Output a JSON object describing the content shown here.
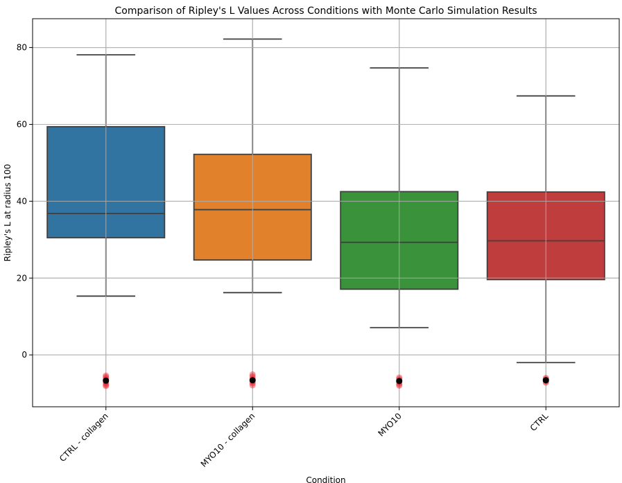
{
  "chart_data": {
    "type": "box",
    "title": "Comparison of Ripley's L Values Across Conditions with Monte Carlo Simulation Results",
    "xlabel": "Condition",
    "ylabel": "Ripley's L at radius 100",
    "ylim": [
      -13.5,
      87.5
    ],
    "yticks": [
      0,
      20,
      40,
      60,
      80
    ],
    "grid": true,
    "categories": [
      "CTRL - collagen",
      "MYO10 - collagen",
      "MYO10",
      "CTRL"
    ],
    "colors": [
      "#3274a1",
      "#e1812c",
      "#3a923a",
      "#c03d3e"
    ],
    "boxes": [
      {
        "whisker_low": 15.3,
        "q1": 30.5,
        "median": 36.8,
        "q3": 59.4,
        "whisker_high": 78.1
      },
      {
        "whisker_low": 16.2,
        "q1": 24.7,
        "median": 37.8,
        "q3": 52.2,
        "whisker_high": 82.2
      },
      {
        "whisker_low": 7.1,
        "q1": 17.1,
        "median": 29.3,
        "q3": 42.5,
        "whisker_high": 74.7
      },
      {
        "whisker_low": -2.0,
        "q1": 19.6,
        "median": 29.7,
        "q3": 42.4,
        "whisker_high": 67.4
      }
    ],
    "simulation_points": [
      [
        -5.4,
        -5.8,
        -6.2,
        -6.6,
        -7.0,
        -7.4,
        -7.8,
        -8.1
      ],
      [
        -5.1,
        -5.6,
        -6.1,
        -6.5,
        -7.0,
        -7.4,
        -7.9
      ],
      [
        -5.9,
        -6.3,
        -6.7,
        -7.1,
        -7.6,
        -8.0
      ],
      [
        -6.0,
        -6.3,
        -6.6,
        -6.9,
        -7.2
      ]
    ],
    "simulation_means": [
      -6.7,
      -6.6,
      -6.8,
      -6.6
    ],
    "simulation_point_color": "#e8202a",
    "simulation_mean_color": "#000000"
  }
}
